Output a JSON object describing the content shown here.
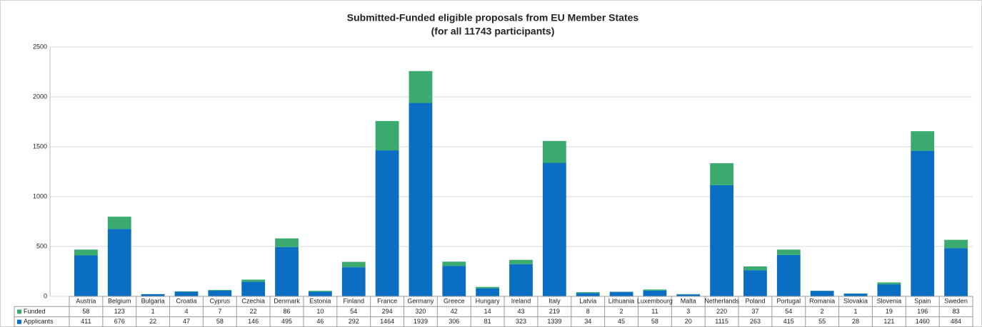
{
  "chart_data": {
    "type": "stacked_bar",
    "title": "Submitted-Funded eligible proposals from EU Member States",
    "subtitle": "(for all 11743 participants)",
    "categories": [
      "Austria",
      "Belgium",
      "Bulgaria",
      "Croatia",
      "Cyprus",
      "Czechia",
      "Denmark",
      "Estonia",
      "Finland",
      "France",
      "Germany",
      "Greece",
      "Hungary",
      "Ireland",
      "Italy",
      "Latvia",
      "Lithuania",
      "Luxembourg",
      "Malta",
      "Netherlands",
      "Poland",
      "Portugal",
      "Romania",
      "Slovakia",
      "Slovenia",
      "Spain",
      "Sweden"
    ],
    "series": [
      {
        "name": "Funded",
        "color": "#3aaa6e",
        "values": [
          58,
          123,
          1,
          4,
          7,
          22,
          86,
          10,
          54,
          294,
          320,
          42,
          14,
          43,
          219,
          8,
          2,
          11,
          3,
          220,
          37,
          54,
          2,
          1,
          19,
          196,
          83
        ]
      },
      {
        "name": "Applicants",
        "color": "#0a6fc2",
        "values": [
          411,
          676,
          22,
          47,
          58,
          146,
          495,
          46,
          292,
          1464,
          1939,
          306,
          81,
          323,
          1339,
          34,
          45,
          58,
          20,
          1115,
          263,
          415,
          55,
          28,
          121,
          1460,
          484
        ]
      }
    ],
    "ylim": [
      0,
      2500
    ],
    "yticks": [
      0,
      500,
      1000,
      1500,
      2000,
      2500
    ],
    "grid": true
  }
}
